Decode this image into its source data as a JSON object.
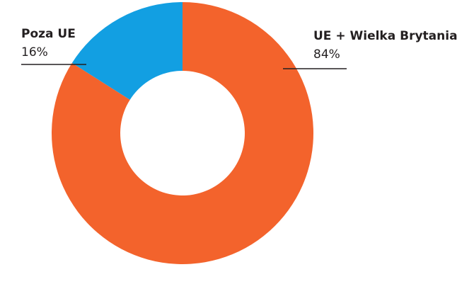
{
  "chart_data": {
    "type": "pie",
    "categories": [
      "UE + Wielka Brytania",
      "Poza UE"
    ],
    "values": [
      84,
      16
    ],
    "value_labels": [
      "84%",
      "16%"
    ],
    "colors": [
      "#f3632c",
      "#129fe2"
    ]
  }
}
